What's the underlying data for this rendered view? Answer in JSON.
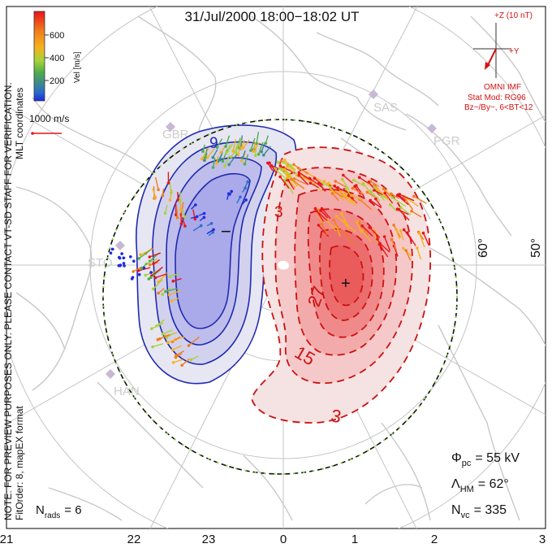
{
  "title": "31/Jul/2000 18:00−18:02 UT",
  "side_note": {
    "line1": "NOTE: FOR PREVIEW PURPOSES ONLY. PLEASE CONTACT VT-SD STAFF FOR VERIFICATION.",
    "line2": "FitOrder: 8, mapEX format",
    "coords": "MLT coordinates"
  },
  "colorbar": {
    "label": "Vel [m/s]",
    "ticks": [
      "600",
      "400",
      "200"
    ],
    "colors": [
      "#e8141b",
      "#f07d1c",
      "#f5b21e",
      "#a7d33a",
      "#52ad4a",
      "#3d8a8a",
      "#2a6fc9",
      "#1f2adf"
    ]
  },
  "scale": {
    "label": "1000 m/s"
  },
  "stations": [
    "GBR",
    "SAS",
    "PGR",
    "STO",
    "HAN"
  ],
  "lat_labels": [
    "60°",
    "50°"
  ],
  "mlt_labels": [
    "21",
    "22",
    "23",
    "0",
    "1",
    "2",
    "3"
  ],
  "contours": {
    "neg_marker": "−",
    "pos_marker": "+",
    "labels": [
      "9",
      "3",
      "27",
      "15",
      "3"
    ]
  },
  "imf": {
    "z_label": "+Z (10 nT)",
    "y_label": "+Y",
    "source": "OMNI IMF",
    "model": "Stat Mod: RG96",
    "condition": "Bz−/By−, 6<BT<12"
  },
  "stats": {
    "phi_label": "Φ",
    "phi_sub": "pc",
    "phi_value": "= 55 kV",
    "lambda_label": "Λ",
    "lambda_sub": "HM",
    "lambda_value": "= 62°",
    "nvc_label": "N",
    "nvc_sub": "vc",
    "nvc_value": "= 335",
    "nrads_label": "N",
    "nrads_sub": "rads",
    "nrads_value": "= 6"
  },
  "colors": {
    "negative_cell": "#2222bb",
    "positive_cell": "#cc1111",
    "grid": "#bbbbbb",
    "coast": "#c8c8c8"
  }
}
